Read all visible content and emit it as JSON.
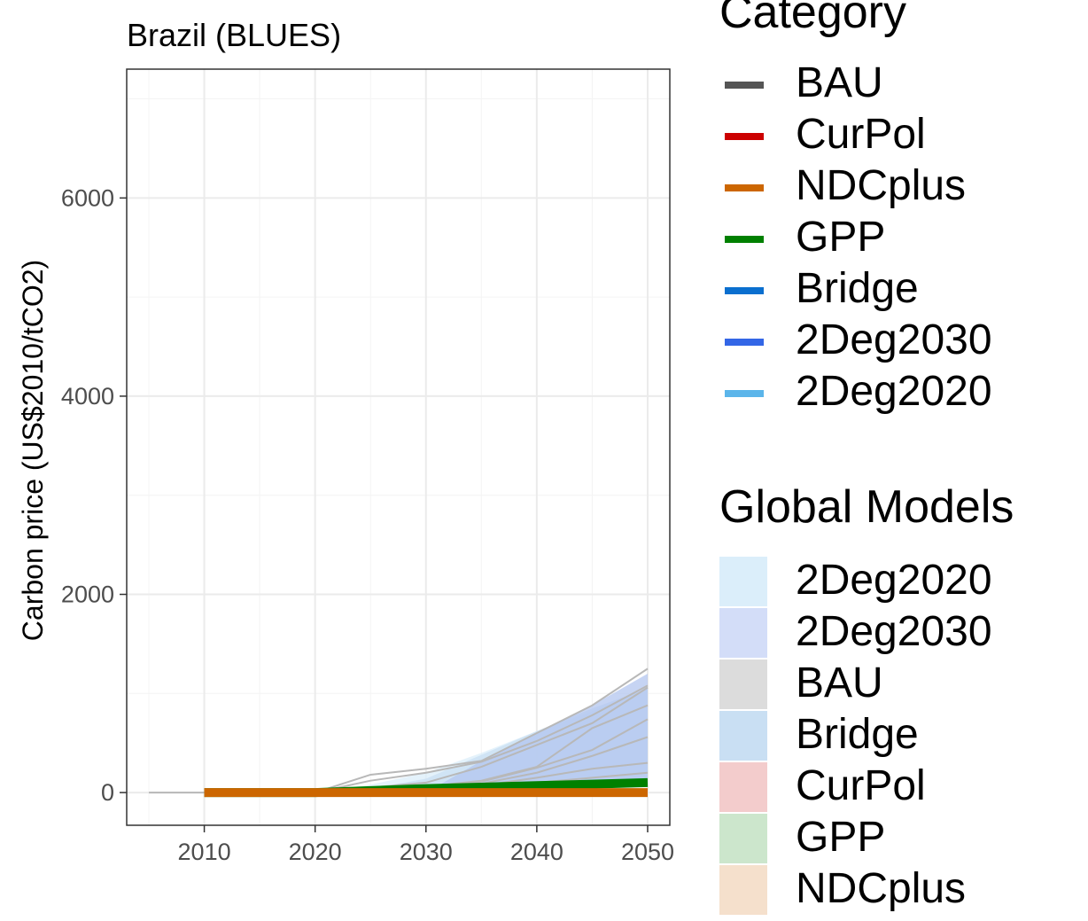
{
  "chart_data": {
    "type": "area",
    "title": "Brazil (BLUES)",
    "xlabel": "",
    "ylabel": "Carbon price (US$2010/tCO2)",
    "xlim": [
      2003,
      2052
    ],
    "ylim": [
      -330,
      7300
    ],
    "x_ticks": [
      2010,
      2020,
      2030,
      2040,
      2050
    ],
    "y_ticks": [
      0,
      2000,
      4000,
      6000
    ],
    "grid": true,
    "legend_position": "right",
    "ribbons": [
      {
        "name": "2Deg2020",
        "color": "#dbeefa",
        "x": [
          2020,
          2025,
          2030,
          2035,
          2040,
          2045,
          2050
        ],
        "lower": [
          0,
          0,
          0,
          20,
          40,
          80,
          120
        ],
        "upper": [
          0,
          80,
          200,
          400,
          620,
          820,
          1050
        ]
      },
      {
        "name": "Bridge",
        "color": "#c9dff3",
        "x": [
          2020,
          2025,
          2030,
          2035,
          2040,
          2045,
          2050
        ],
        "lower": [
          0,
          0,
          0,
          20,
          40,
          70,
          100
        ],
        "upper": [
          0,
          40,
          140,
          380,
          620,
          850,
          1050
        ]
      },
      {
        "name": "2Deg2030",
        "color": "#b3c5ef",
        "x": [
          2030,
          2035,
          2040,
          2045,
          2050
        ],
        "lower": [
          0,
          20,
          40,
          70,
          100
        ],
        "upper": [
          0,
          320,
          600,
          880,
          1200
        ]
      }
    ],
    "global_model_lines": [
      {
        "x": [
          2005,
          2010,
          2020,
          2025,
          2030,
          2035,
          2040,
          2045,
          2050
        ],
        "values": [
          0,
          0,
          0,
          180,
          240,
          320,
          600,
          880,
          1250
        ]
      },
      {
        "x": [
          2020,
          2025,
          2030,
          2035,
          2040,
          2045,
          2050
        ],
        "values": [
          0,
          120,
          200,
          310,
          520,
          780,
          1080
        ]
      },
      {
        "x": [
          2020,
          2025,
          2030,
          2035,
          2040,
          2045,
          2050
        ],
        "values": [
          0,
          50,
          100,
          260,
          480,
          700,
          1060
        ]
      },
      {
        "x": [
          2020,
          2025,
          2030,
          2035,
          2040,
          2045,
          2050
        ],
        "values": [
          0,
          20,
          60,
          120,
          260,
          650,
          880
        ]
      },
      {
        "x": [
          2020,
          2025,
          2030,
          2035,
          2040,
          2045,
          2050
        ],
        "values": [
          0,
          10,
          40,
          110,
          250,
          430,
          740
        ]
      },
      {
        "x": [
          2020,
          2025,
          2030,
          2035,
          2040,
          2045,
          2050
        ],
        "values": [
          0,
          5,
          30,
          90,
          200,
          370,
          560
        ]
      },
      {
        "x": [
          2020,
          2025,
          2030,
          2035,
          2040,
          2045,
          2050
        ],
        "values": [
          0,
          5,
          25,
          70,
          150,
          240,
          300
        ]
      },
      {
        "x": [
          2020,
          2025,
          2030,
          2035,
          2040,
          2045,
          2050
        ],
        "values": [
          0,
          0,
          15,
          60,
          100,
          150,
          200
        ]
      },
      {
        "x": [
          2020,
          2025,
          2030,
          2035,
          2040,
          2045,
          2050
        ],
        "values": [
          0,
          0,
          10,
          50,
          80,
          110,
          130
        ]
      }
    ],
    "series": [
      {
        "name": "GPP",
        "color": "#008000",
        "x": [
          2010,
          2020,
          2025,
          2030,
          2035,
          2040,
          2045,
          2050
        ],
        "values": [
          0,
          0,
          20,
          40,
          55,
          70,
          85,
          100
        ]
      },
      {
        "name": "NDCplus",
        "color": "#cc6600",
        "x": [
          2010,
          2020,
          2030,
          2040,
          2050
        ],
        "values": [
          0,
          0,
          0,
          0,
          0
        ]
      }
    ],
    "legend_category": {
      "title": "Category",
      "items": [
        {
          "label": "BAU",
          "color": "#555555"
        },
        {
          "label": "CurPol",
          "color": "#cc0000"
        },
        {
          "label": "NDCplus",
          "color": "#cc6600"
        },
        {
          "label": "GPP",
          "color": "#008000"
        },
        {
          "label": "Bridge",
          "color": "#0a6fcf"
        },
        {
          "label": "2Deg2030",
          "color": "#3366e6"
        },
        {
          "label": "2Deg2020",
          "color": "#5bb5ea"
        }
      ]
    },
    "legend_global": {
      "title": "Global Models",
      "items": [
        {
          "label": "2Deg2020",
          "color": "#dbeefa"
        },
        {
          "label": "2Deg2030",
          "color": "#d3ddf8"
        },
        {
          "label": "BAU",
          "color": "#dcdcdc"
        },
        {
          "label": "Bridge",
          "color": "#c9dff3"
        },
        {
          "label": "CurPol",
          "color": "#f3cccc"
        },
        {
          "label": "GPP",
          "color": "#cce6cc"
        },
        {
          "label": "NDCplus",
          "color": "#f5e0cc"
        }
      ]
    }
  }
}
